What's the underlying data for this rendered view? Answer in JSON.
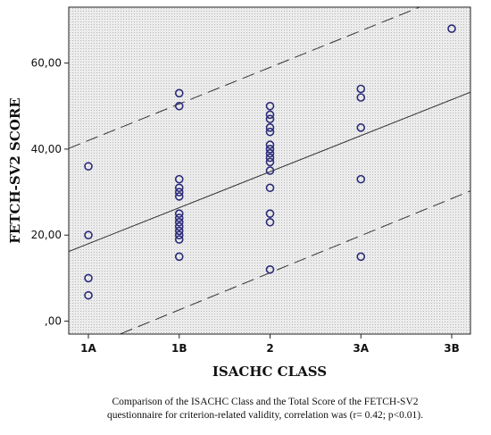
{
  "chart_data": {
    "type": "scatter",
    "xlabel": "ISACHC CLASS",
    "ylabel": "FETCH-SV2 SCORE",
    "categories": [
      "1A",
      "1B",
      "2",
      "3A",
      "3B"
    ],
    "yticks": [
      0,
      20,
      40,
      60
    ],
    "ytick_labels": [
      ",00",
      "20,00",
      "40,00",
      "60,00"
    ],
    "ylim": [
      -3,
      73
    ],
    "grid": false,
    "series": [
      {
        "points": [
          {
            "x": "1A",
            "y": 36
          },
          {
            "x": "1A",
            "y": 20
          },
          {
            "x": "1A",
            "y": 10
          },
          {
            "x": "1A",
            "y": 6
          },
          {
            "x": "1B",
            "y": 53
          },
          {
            "x": "1B",
            "y": 50
          },
          {
            "x": "1B",
            "y": 33
          },
          {
            "x": "1B",
            "y": 31
          },
          {
            "x": "1B",
            "y": 30
          },
          {
            "x": "1B",
            "y": 29
          },
          {
            "x": "1B",
            "y": 25
          },
          {
            "x": "1B",
            "y": 24
          },
          {
            "x": "1B",
            "y": 23
          },
          {
            "x": "1B",
            "y": 22
          },
          {
            "x": "1B",
            "y": 21
          },
          {
            "x": "1B",
            "y": 20
          },
          {
            "x": "1B",
            "y": 19
          },
          {
            "x": "1B",
            "y": 15
          },
          {
            "x": "2",
            "y": 50
          },
          {
            "x": "2",
            "y": 48
          },
          {
            "x": "2",
            "y": 47
          },
          {
            "x": "2",
            "y": 45
          },
          {
            "x": "2",
            "y": 44
          },
          {
            "x": "2",
            "y": 41
          },
          {
            "x": "2",
            "y": 40
          },
          {
            "x": "2",
            "y": 39
          },
          {
            "x": "2",
            "y": 38
          },
          {
            "x": "2",
            "y": 37
          },
          {
            "x": "2",
            "y": 35
          },
          {
            "x": "2",
            "y": 31
          },
          {
            "x": "2",
            "y": 25
          },
          {
            "x": "2",
            "y": 23
          },
          {
            "x": "2",
            "y": 12
          },
          {
            "x": "3A",
            "y": 54
          },
          {
            "x": "3A",
            "y": 52
          },
          {
            "x": "3A",
            "y": 45
          },
          {
            "x": "3A",
            "y": 33
          },
          {
            "x": "3A",
            "y": 15
          },
          {
            "x": "3B",
            "y": 68
          }
        ]
      }
    ],
    "fit_line": {
      "y_at_1A": 18,
      "y_at_3B": 51.5
    },
    "upper_band": {
      "y_at_1A": 42,
      "y_at_3B": 76
    },
    "lower_band": {
      "y_at_1A": -6,
      "y_at_3B": 28.5
    }
  },
  "caption": {
    "line1": "Comparison of the ISACHC Class and the Total Score of the FETCH-SV2",
    "line2": "questionnaire for criterion-related validity, correlation was (r= 0.42; p<0.01)."
  },
  "colors": {
    "marker": "#2a2a7a",
    "plot_background": "#e4e4e4",
    "line": "#333333"
  }
}
